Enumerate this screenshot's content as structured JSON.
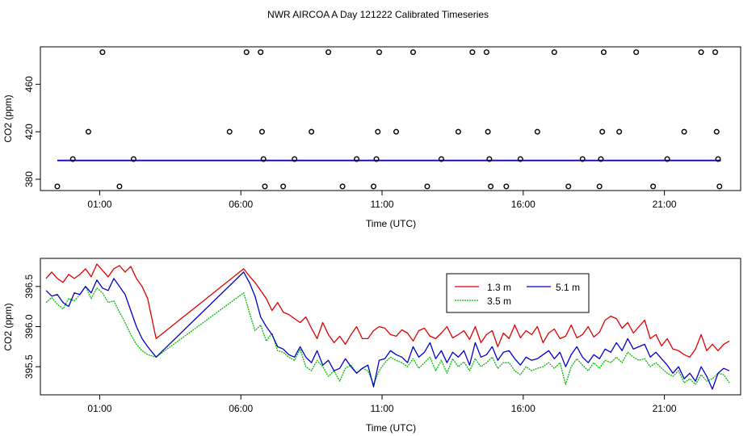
{
  "title": "NWR AIRCOA A  Day 121222  Calibrated Timeseries",
  "chart_data": [
    {
      "type": "scatter",
      "xlabel": "Time (UTC)",
      "ylabel": "CO2 (ppm)",
      "xlim": [
        -1.1,
        23.7
      ],
      "ylim": [
        370.5,
        491.5
      ],
      "xticks": [
        1,
        6,
        11,
        16,
        21
      ],
      "xtick_labels": [
        "01:00",
        "06:00",
        "11:00",
        "16:00",
        "21:00"
      ],
      "yticks": [
        380,
        420,
        460
      ],
      "ytick_labels": [
        "380",
        "420",
        "460"
      ],
      "grid": false,
      "legend": null,
      "series": [
        {
          "color": "#000000",
          "marker": "open-circle",
          "points": [
            [
              -0.5,
              374
            ],
            [
              0.05,
              397
            ],
            [
              0.6,
              420
            ],
            [
              1.1,
              487
            ],
            [
              1.7,
              374
            ],
            [
              2.2,
              397
            ],
            [
              5.6,
              420
            ],
            [
              6.2,
              487
            ],
            [
              6.7,
              487
            ],
            [
              6.75,
              420
            ],
            [
              6.8,
              397
            ],
            [
              6.85,
              374
            ],
            [
              7.5,
              374
            ],
            [
              7.9,
              397
            ],
            [
              8.5,
              420
            ],
            [
              9.1,
              487
            ],
            [
              9.6,
              374
            ],
            [
              10.1,
              397
            ],
            [
              10.7,
              374
            ],
            [
              10.8,
              397
            ],
            [
              10.85,
              420
            ],
            [
              10.9,
              487
            ],
            [
              11.5,
              420
            ],
            [
              12.1,
              487
            ],
            [
              12.6,
              374
            ],
            [
              13.1,
              397
            ],
            [
              13.7,
              420
            ],
            [
              14.2,
              487
            ],
            [
              14.7,
              487
            ],
            [
              14.75,
              420
            ],
            [
              14.8,
              397
            ],
            [
              14.85,
              374
            ],
            [
              15.4,
              374
            ],
            [
              15.9,
              397
            ],
            [
              16.5,
              420
            ],
            [
              17.1,
              487
            ],
            [
              17.6,
              374
            ],
            [
              18.1,
              397
            ],
            [
              18.7,
              374
            ],
            [
              18.75,
              397
            ],
            [
              18.8,
              420
            ],
            [
              18.85,
              487
            ],
            [
              19.4,
              420
            ],
            [
              20.0,
              487
            ],
            [
              20.6,
              374
            ],
            [
              21.1,
              397
            ],
            [
              21.7,
              420
            ],
            [
              22.3,
              487
            ],
            [
              22.8,
              487
            ],
            [
              22.85,
              420
            ],
            [
              22.9,
              397
            ],
            [
              22.95,
              374
            ]
          ]
        },
        {
          "color": "#dd0000",
          "line_y": 396.0
        },
        {
          "color": "#00bb00",
          "line_y": 395.6
        },
        {
          "color": "#0000cc",
          "line_y": 395.8
        }
      ]
    },
    {
      "type": "line",
      "xlabel": "Time (UTC)",
      "ylabel": "CO2 (ppm)",
      "xlim": [
        -1.1,
        23.7
      ],
      "ylim": [
        395.15,
        396.85
      ],
      "xticks": [
        1,
        6,
        11,
        16,
        21
      ],
      "xtick_labels": [
        "01:00",
        "06:00",
        "11:00",
        "16:00",
        "21:00"
      ],
      "yticks": [
        395.5,
        396.0,
        396.5
      ],
      "ytick_labels": [
        "395.5",
        "396.0",
        "396.5"
      ],
      "grid": false,
      "legend": "top-right",
      "legend_columns": 2,
      "series": [
        {
          "name": "1.3 m",
          "color": "#dd0000",
          "x": [
            -0.9,
            -0.7,
            -0.5,
            -0.3,
            -0.1,
            0.1,
            0.3,
            0.5,
            0.7,
            0.9,
            1.1,
            1.3,
            1.5,
            1.7,
            1.9,
            2.1,
            2.3,
            2.5,
            2.7,
            3.0,
            6.1,
            6.3,
            6.5,
            6.7,
            6.9,
            7.1,
            7.3,
            7.5,
            7.7,
            7.9,
            8.1,
            8.3,
            8.5,
            8.7,
            8.9,
            9.1,
            9.3,
            9.5,
            9.7,
            9.9,
            10.1,
            10.3,
            10.5,
            10.7,
            10.9,
            11.1,
            11.3,
            11.5,
            11.7,
            11.9,
            12.1,
            12.3,
            12.5,
            12.7,
            12.9,
            13.1,
            13.3,
            13.5,
            13.7,
            13.9,
            14.1,
            14.3,
            14.5,
            14.7,
            14.9,
            15.1,
            15.3,
            15.5,
            15.7,
            15.9,
            16.1,
            16.3,
            16.5,
            16.7,
            16.9,
            17.1,
            17.3,
            17.5,
            17.7,
            17.9,
            18.1,
            18.3,
            18.5,
            18.7,
            18.9,
            19.1,
            19.3,
            19.5,
            19.7,
            19.9,
            20.1,
            20.3,
            20.5,
            20.7,
            20.9,
            21.1,
            21.3,
            21.5,
            21.7,
            21.9,
            22.1,
            22.3,
            22.5,
            22.7,
            22.9,
            23.1,
            23.3
          ],
          "values": [
            396.6,
            396.68,
            396.6,
            396.55,
            396.65,
            396.6,
            396.65,
            396.72,
            396.62,
            396.78,
            396.7,
            396.62,
            396.72,
            396.76,
            396.68,
            396.75,
            396.6,
            396.5,
            396.35,
            395.85,
            396.72,
            396.63,
            396.55,
            396.45,
            396.35,
            396.2,
            396.3,
            396.18,
            396.15,
            396.1,
            396.05,
            396.12,
            395.98,
            395.85,
            396.05,
            395.9,
            395.8,
            395.88,
            395.78,
            395.9,
            396.0,
            395.85,
            395.85,
            395.95,
            396.0,
            395.98,
            395.9,
            395.88,
            395.96,
            395.92,
            395.82,
            395.95,
            395.98,
            395.88,
            395.85,
            395.92,
            396.0,
            395.86,
            395.9,
            395.95,
            395.84,
            396.0,
            395.8,
            395.9,
            395.95,
            395.75,
            395.92,
            395.85,
            396.02,
            395.86,
            395.95,
            395.9,
            396.0,
            395.8,
            395.92,
            395.97,
            395.85,
            395.88,
            396.02,
            395.86,
            395.9,
            396.0,
            395.87,
            395.93,
            396.08,
            396.13,
            396.1,
            395.98,
            396.05,
            395.92,
            396.0,
            396.08,
            395.85,
            395.9,
            395.76,
            395.85,
            395.72,
            395.7,
            395.65,
            395.62,
            395.72,
            395.9,
            395.7,
            395.78,
            395.7,
            395.78,
            395.82
          ]
        },
        {
          "name": "3.5 m",
          "color": "#00bb00",
          "x": [
            -0.9,
            -0.7,
            -0.5,
            -0.3,
            -0.1,
            0.1,
            0.3,
            0.5,
            0.7,
            0.9,
            1.1,
            1.3,
            1.5,
            1.7,
            1.9,
            2.1,
            2.3,
            2.5,
            2.7,
            3.0,
            6.1,
            6.3,
            6.5,
            6.7,
            6.9,
            7.1,
            7.3,
            7.5,
            7.7,
            7.9,
            8.1,
            8.3,
            8.5,
            8.7,
            8.9,
            9.1,
            9.3,
            9.5,
            9.7,
            9.9,
            10.1,
            10.3,
            10.5,
            10.7,
            10.9,
            11.1,
            11.3,
            11.5,
            11.7,
            11.9,
            12.1,
            12.3,
            12.5,
            12.7,
            12.9,
            13.1,
            13.3,
            13.5,
            13.7,
            13.9,
            14.1,
            14.3,
            14.5,
            14.7,
            14.9,
            15.1,
            15.3,
            15.5,
            15.7,
            15.9,
            16.1,
            16.3,
            16.5,
            16.7,
            16.9,
            17.1,
            17.3,
            17.5,
            17.7,
            17.9,
            18.1,
            18.3,
            18.5,
            18.7,
            18.9,
            19.1,
            19.3,
            19.5,
            19.7,
            19.9,
            20.1,
            20.3,
            20.5,
            20.7,
            20.9,
            21.1,
            21.3,
            21.5,
            21.7,
            21.9,
            22.1,
            22.3,
            22.5,
            22.7,
            22.9,
            23.1,
            23.3
          ],
          "values": [
            396.3,
            396.36,
            396.28,
            396.22,
            396.35,
            396.32,
            396.4,
            396.5,
            396.35,
            396.48,
            396.42,
            396.3,
            396.32,
            396.18,
            396.05,
            395.9,
            395.78,
            395.7,
            395.65,
            395.62,
            396.42,
            396.18,
            395.95,
            396.02,
            395.82,
            395.92,
            395.7,
            395.68,
            395.62,
            395.58,
            395.72,
            395.5,
            395.45,
            395.58,
            395.5,
            395.38,
            395.45,
            395.32,
            395.48,
            395.52,
            395.42,
            395.48,
            395.45,
            395.28,
            395.45,
            395.55,
            395.62,
            395.58,
            395.55,
            395.5,
            395.6,
            395.48,
            395.55,
            395.62,
            395.45,
            395.58,
            395.42,
            395.6,
            395.5,
            395.56,
            395.45,
            395.6,
            395.5,
            395.55,
            395.62,
            395.48,
            395.55,
            395.55,
            395.45,
            395.4,
            395.5,
            395.45,
            395.48,
            395.5,
            395.55,
            395.48,
            395.55,
            395.28,
            395.5,
            395.6,
            395.52,
            395.45,
            395.55,
            395.48,
            395.58,
            395.55,
            395.62,
            395.55,
            395.68,
            395.62,
            395.58,
            395.6,
            395.5,
            395.55,
            395.48,
            395.42,
            395.38,
            395.45,
            395.3,
            395.35,
            395.28,
            395.4,
            395.32,
            395.35,
            395.42,
            395.4,
            395.3
          ]
        },
        {
          "name": "5.1 m",
          "color": "#0000cc",
          "x": [
            -0.9,
            -0.7,
            -0.5,
            -0.3,
            -0.1,
            0.1,
            0.3,
            0.5,
            0.7,
            0.9,
            1.1,
            1.3,
            1.5,
            1.7,
            1.9,
            2.1,
            2.3,
            2.5,
            2.7,
            3.0,
            6.1,
            6.3,
            6.5,
            6.7,
            6.9,
            7.1,
            7.3,
            7.5,
            7.7,
            7.9,
            8.1,
            8.3,
            8.5,
            8.7,
            8.9,
            9.1,
            9.3,
            9.5,
            9.7,
            9.9,
            10.1,
            10.3,
            10.5,
            10.7,
            10.9,
            11.1,
            11.3,
            11.5,
            11.7,
            11.9,
            12.1,
            12.3,
            12.5,
            12.7,
            12.9,
            13.1,
            13.3,
            13.5,
            13.7,
            13.9,
            14.1,
            14.3,
            14.5,
            14.7,
            14.9,
            15.1,
            15.3,
            15.5,
            15.7,
            15.9,
            16.1,
            16.3,
            16.5,
            16.7,
            16.9,
            17.1,
            17.3,
            17.5,
            17.7,
            17.9,
            18.1,
            18.3,
            18.5,
            18.7,
            18.9,
            19.1,
            19.3,
            19.5,
            19.7,
            19.9,
            20.1,
            20.3,
            20.5,
            20.7,
            20.9,
            21.1,
            21.3,
            21.5,
            21.7,
            21.9,
            22.1,
            22.3,
            22.5,
            22.7,
            22.9,
            23.1,
            23.3
          ],
          "values": [
            396.45,
            396.38,
            396.4,
            396.3,
            396.25,
            396.42,
            396.4,
            396.5,
            396.42,
            396.58,
            396.48,
            396.45,
            396.6,
            396.5,
            396.4,
            396.2,
            396.0,
            395.85,
            395.75,
            395.62,
            396.68,
            396.55,
            396.38,
            396.12,
            396.0,
            395.9,
            395.75,
            395.72,
            395.65,
            395.62,
            395.75,
            395.62,
            395.55,
            395.7,
            395.52,
            395.58,
            395.45,
            395.48,
            395.6,
            395.5,
            395.42,
            395.48,
            395.52,
            395.25,
            395.58,
            395.6,
            395.7,
            395.65,
            395.62,
            395.55,
            395.75,
            395.62,
            395.68,
            395.8,
            395.6,
            395.7,
            395.55,
            395.68,
            395.62,
            395.7,
            395.52,
            395.8,
            395.62,
            395.65,
            395.75,
            395.58,
            395.68,
            395.7,
            395.6,
            395.52,
            395.62,
            395.58,
            395.6,
            395.65,
            395.7,
            395.6,
            395.68,
            395.5,
            395.65,
            395.75,
            395.62,
            395.55,
            395.65,
            395.6,
            395.72,
            395.68,
            395.8,
            395.7,
            395.85,
            395.72,
            395.75,
            395.78,
            395.62,
            395.68,
            395.6,
            395.52,
            395.42,
            395.5,
            395.35,
            395.42,
            395.32,
            395.5,
            395.38,
            395.22,
            395.42,
            395.48,
            395.45
          ]
        }
      ]
    }
  ]
}
